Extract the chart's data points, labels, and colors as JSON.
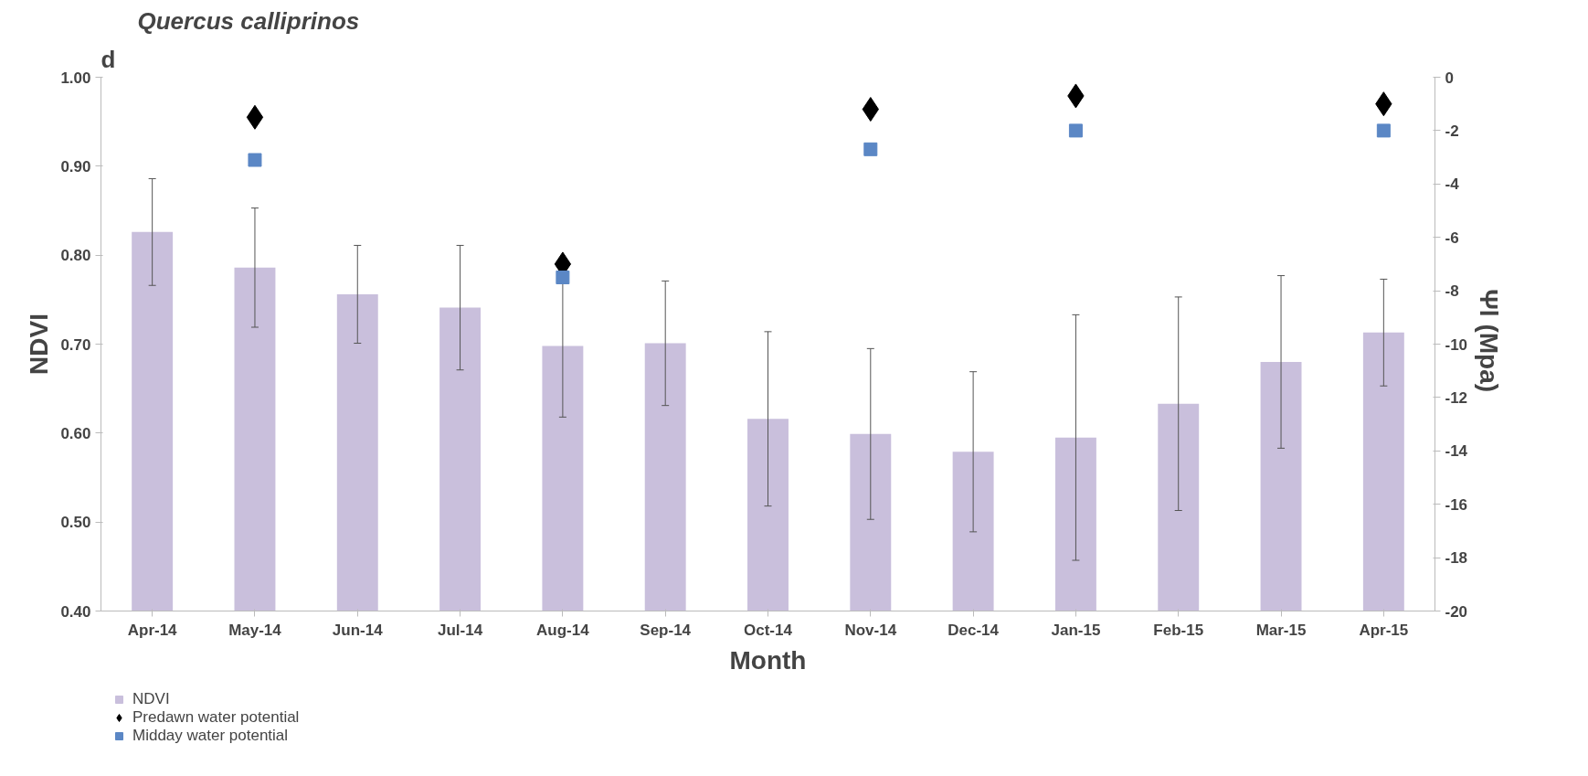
{
  "chart_data": {
    "type": "bar",
    "title": "Quercus calliprinos",
    "xlabel": "Month",
    "ylabel": "NDVI",
    "y2label": "Ψl  (Mpa)",
    "annotations": [
      "d"
    ],
    "categories": [
      "Apr-14",
      "May-14",
      "Jun-14",
      "Jul-14",
      "Aug-14",
      "Sep-14",
      "Oct-14",
      "Nov-14",
      "Dec-14",
      "Jan-15",
      "Feb-15",
      "Mar-15",
      "Apr-15"
    ],
    "series": [
      {
        "name": "NDVI",
        "color": "#c9bfdc",
        "values": [
          0.826,
          0.786,
          0.756,
          0.741,
          0.698,
          0.701,
          0.616,
          0.599,
          0.579,
          0.595,
          0.633,
          0.68,
          0.713
        ],
        "errors": [
          0.06,
          0.067,
          0.055,
          0.07,
          0.08,
          0.07,
          0.098,
          0.096,
          0.09,
          0.138,
          0.12,
          0.097,
          0.06
        ]
      },
      {
        "name": "Predawn water potential",
        "type": "scatter",
        "axis": "y2",
        "marker": "diamond",
        "color": "#000000",
        "values": [
          null,
          -1.5,
          null,
          null,
          -7.0,
          null,
          null,
          -1.2,
          null,
          -0.7,
          null,
          null,
          -1.0
        ]
      },
      {
        "name": "Midday water potential",
        "type": "scatter",
        "axis": "y2",
        "marker": "square",
        "color": "#5b87c5",
        "values": [
          null,
          -3.1,
          null,
          null,
          -7.5,
          null,
          null,
          -2.7,
          null,
          -2.0,
          null,
          null,
          -2.0
        ]
      }
    ],
    "ylim": [
      0.4,
      1.0
    ],
    "yticks": [
      {
        "value": 0.4,
        "label": "0.40"
      },
      {
        "value": 0.5,
        "label": "0.50"
      },
      {
        "value": 0.6,
        "label": "0.60"
      },
      {
        "value": 0.7,
        "label": "0.70"
      },
      {
        "value": 0.8,
        "label": "0.80"
      },
      {
        "value": 0.9,
        "label": "0.90"
      },
      {
        "value": 1.0,
        "label": "1.00"
      }
    ],
    "y2lim": [
      -20,
      0
    ],
    "y2ticks": [
      -20,
      -18,
      -16,
      -14,
      -12,
      -10,
      -8,
      -6,
      -4,
      -2,
      0
    ],
    "grid": false,
    "legend": "bottom left"
  }
}
